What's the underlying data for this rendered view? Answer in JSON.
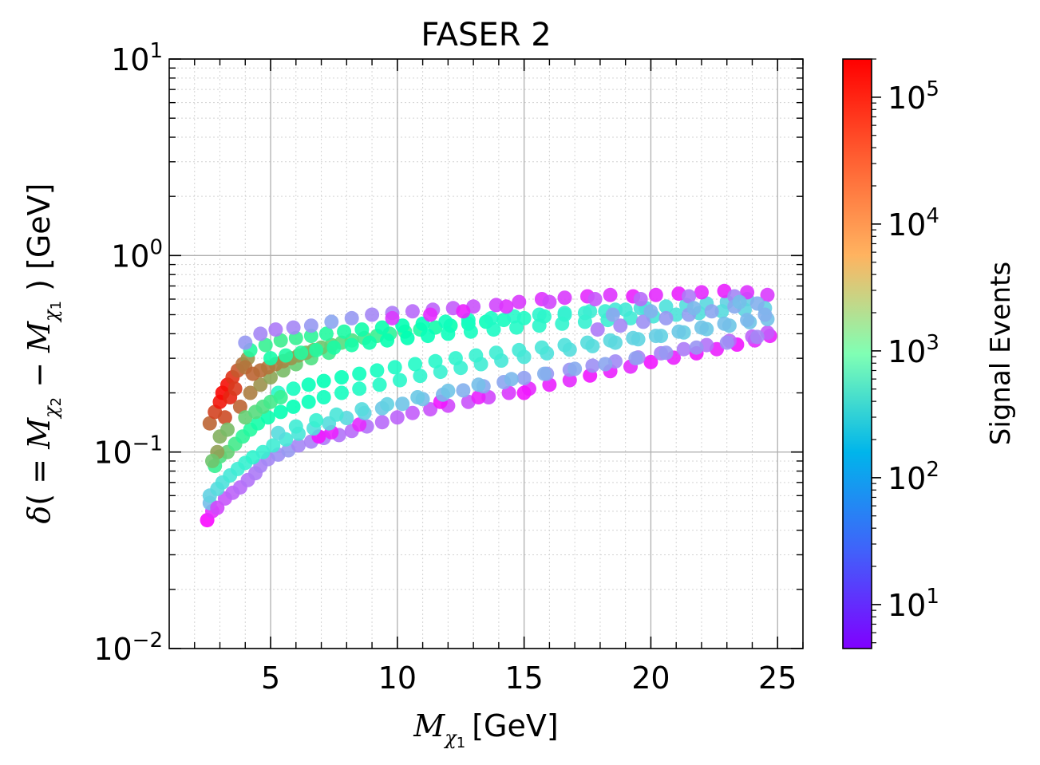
{
  "chart_data": {
    "type": "scatter",
    "title": "FASER 2",
    "xlabel": {
      "symbol": "M",
      "subscript": "χ",
      "subsubscript": "1",
      "unit": "[GeV]"
    },
    "ylabel": {
      "delta": "δ",
      "open": "( = ",
      "m2": "M",
      "sub2": "χ",
      "subsub2": "2",
      "minus": " − ",
      "m1": "M",
      "sub1": "χ",
      "subsub1": "1",
      "close": " ) [GeV]"
    },
    "x_scale": "linear",
    "y_scale": "log",
    "xlim": [
      1,
      26
    ],
    "ylim": [
      0.01,
      10
    ],
    "x_ticks": [
      {
        "value": 5,
        "label": "5"
      },
      {
        "value": 10,
        "label": "10"
      },
      {
        "value": 15,
        "label": "15"
      },
      {
        "value": 20,
        "label": "20"
      },
      {
        "value": 25,
        "label": "25"
      }
    ],
    "y_ticks": [
      {
        "value": 0.01,
        "base": "10",
        "exp": "−2"
      },
      {
        "value": 0.1,
        "base": "10",
        "exp": "−1"
      },
      {
        "value": 1,
        "base": "10",
        "exp": "0"
      },
      {
        "value": 10,
        "base": "10",
        "exp": "1"
      }
    ],
    "grid": true,
    "colorbar": {
      "label": "Signal Events",
      "scale": "log",
      "colormap": "rainbow",
      "range": [
        4.5,
        200000
      ],
      "ticks": [
        {
          "value": 10,
          "base": "10",
          "exp": "1"
        },
        {
          "value": 100,
          "base": "10",
          "exp": "2"
        },
        {
          "value": 1000,
          "base": "10",
          "exp": "3"
        },
        {
          "value": 10000,
          "base": "10",
          "exp": "4"
        },
        {
          "value": 100000,
          "base": "10",
          "exp": "5"
        }
      ]
    },
    "points_columns": [
      "x_GeV",
      "delta_GeV",
      "signal_events"
    ],
    "points": [
      [
        2.5,
        0.045,
        5
      ],
      [
        2.7,
        0.05,
        8
      ],
      [
        2.6,
        0.055,
        80
      ],
      [
        2.9,
        0.052,
        12
      ],
      [
        3.2,
        0.058,
        15
      ],
      [
        3.5,
        0.062,
        18
      ],
      [
        3.8,
        0.066,
        20
      ],
      [
        4.1,
        0.072,
        22
      ],
      [
        4.4,
        0.078,
        25
      ],
      [
        4.6,
        0.085,
        28
      ],
      [
        4.9,
        0.092,
        30
      ],
      [
        5.3,
        0.097,
        35
      ],
      [
        5.7,
        0.102,
        40
      ],
      [
        6.1,
        0.108,
        30
      ],
      [
        6.6,
        0.113,
        28
      ],
      [
        7.1,
        0.118,
        25
      ],
      [
        7.7,
        0.122,
        22
      ],
      [
        8.2,
        0.128,
        20
      ],
      [
        8.8,
        0.135,
        22
      ],
      [
        9.4,
        0.142,
        20
      ],
      [
        10.0,
        0.15,
        18
      ],
      [
        10.6,
        0.158,
        16
      ],
      [
        11.3,
        0.165,
        14
      ],
      [
        12.0,
        0.172,
        12
      ],
      [
        12.8,
        0.18,
        14
      ],
      [
        13.6,
        0.19,
        12
      ],
      [
        14.4,
        0.2,
        10
      ],
      [
        15.2,
        0.21,
        8
      ],
      [
        16.0,
        0.22,
        7
      ],
      [
        16.8,
        0.232,
        8
      ],
      [
        17.6,
        0.245,
        6
      ],
      [
        18.4,
        0.258,
        7
      ],
      [
        19.2,
        0.272,
        8
      ],
      [
        20.0,
        0.287,
        6
      ],
      [
        20.9,
        0.302,
        7
      ],
      [
        21.8,
        0.318,
        6
      ],
      [
        22.6,
        0.334,
        7
      ],
      [
        23.4,
        0.352,
        6
      ],
      [
        24.1,
        0.37,
        8
      ],
      [
        24.7,
        0.39,
        7
      ],
      [
        6.9,
        0.12,
        6
      ],
      [
        7.4,
        0.126,
        7
      ],
      [
        8.5,
        0.138,
        8
      ],
      [
        11.7,
        0.18,
        6
      ],
      [
        13.2,
        0.19,
        7
      ],
      [
        15.0,
        0.2,
        6
      ],
      [
        2.6,
        0.06,
        120
      ],
      [
        2.9,
        0.065,
        150
      ],
      [
        3.1,
        0.07,
        180
      ],
      [
        3.4,
        0.076,
        220
      ],
      [
        3.7,
        0.082,
        250
      ],
      [
        4.0,
        0.088,
        300
      ],
      [
        4.3,
        0.094,
        350
      ],
      [
        4.7,
        0.1,
        300
      ],
      [
        5.1,
        0.108,
        250
      ],
      [
        5.6,
        0.116,
        220
      ],
      [
        6.1,
        0.124,
        200
      ],
      [
        6.7,
        0.132,
        180
      ],
      [
        7.3,
        0.14,
        160
      ],
      [
        8.0,
        0.149,
        140
      ],
      [
        8.7,
        0.158,
        120
      ],
      [
        9.4,
        0.167,
        100
      ],
      [
        10.2,
        0.176,
        90
      ],
      [
        11.0,
        0.186,
        80
      ],
      [
        11.8,
        0.196,
        70
      ],
      [
        12.6,
        0.206,
        60
      ],
      [
        13.4,
        0.216,
        55
      ],
      [
        14.2,
        0.227,
        50
      ],
      [
        15.0,
        0.238,
        45
      ],
      [
        15.9,
        0.25,
        40
      ],
      [
        16.8,
        0.262,
        38
      ],
      [
        17.7,
        0.275,
        35
      ],
      [
        18.6,
        0.289,
        32
      ],
      [
        19.5,
        0.303,
        30
      ],
      [
        20.4,
        0.318,
        28
      ],
      [
        21.3,
        0.334,
        25
      ],
      [
        22.2,
        0.35,
        22
      ],
      [
        23.1,
        0.368,
        20
      ],
      [
        24.0,
        0.387,
        18
      ],
      [
        24.6,
        0.405,
        16
      ],
      [
        5.3,
        0.125,
        150
      ],
      [
        6.0,
        0.135,
        250
      ],
      [
        6.8,
        0.145,
        300
      ],
      [
        7.6,
        0.155,
        200
      ],
      [
        8.6,
        0.165,
        150
      ],
      [
        9.6,
        0.175,
        120
      ],
      [
        10.8,
        0.19,
        100
      ],
      [
        12.0,
        0.205,
        90
      ],
      [
        13.2,
        0.22,
        80
      ],
      [
        14.5,
        0.235,
        70
      ],
      [
        15.8,
        0.25,
        60
      ],
      [
        17.0,
        0.265,
        55
      ],
      [
        18.2,
        0.28,
        50
      ],
      [
        19.4,
        0.3,
        45
      ],
      [
        20.6,
        0.32,
        40
      ],
      [
        21.8,
        0.34,
        38
      ],
      [
        23.0,
        0.36,
        35
      ],
      [
        24.2,
        0.385,
        30
      ],
      [
        2.8,
        0.085,
        3000
      ],
      [
        3.0,
        0.095,
        5000
      ],
      [
        3.3,
        0.1,
        8000
      ],
      [
        3.6,
        0.11,
        4000
      ],
      [
        3.9,
        0.12,
        2500
      ],
      [
        4.2,
        0.13,
        2000
      ],
      [
        4.5,
        0.14,
        1500
      ],
      [
        4.9,
        0.15,
        1200
      ],
      [
        5.4,
        0.16,
        1000
      ],
      [
        5.9,
        0.17,
        900
      ],
      [
        6.5,
        0.18,
        800
      ],
      [
        7.1,
        0.19,
        700
      ],
      [
        7.8,
        0.2,
        600
      ],
      [
        8.5,
        0.21,
        500
      ],
      [
        9.3,
        0.22,
        450
      ],
      [
        10.1,
        0.232,
        400
      ],
      [
        10.9,
        0.244,
        350
      ],
      [
        11.7,
        0.256,
        300
      ],
      [
        12.5,
        0.268,
        280
      ],
      [
        13.3,
        0.28,
        250
      ],
      [
        14.1,
        0.292,
        220
      ],
      [
        15.0,
        0.305,
        200
      ],
      [
        15.9,
        0.318,
        180
      ],
      [
        16.8,
        0.332,
        160
      ],
      [
        17.7,
        0.346,
        150
      ],
      [
        18.6,
        0.36,
        140
      ],
      [
        19.5,
        0.375,
        130
      ],
      [
        20.4,
        0.39,
        120
      ],
      [
        21.3,
        0.406,
        110
      ],
      [
        22.2,
        0.422,
        100
      ],
      [
        23.1,
        0.44,
        95
      ],
      [
        23.9,
        0.458,
        90
      ],
      [
        24.6,
        0.475,
        85
      ],
      [
        2.6,
        0.14,
        50000
      ],
      [
        2.8,
        0.16,
        80000
      ],
      [
        3.0,
        0.18,
        150000
      ],
      [
        3.1,
        0.2,
        180000
      ],
      [
        3.3,
        0.22,
        160000
      ],
      [
        3.5,
        0.24,
        100000
      ],
      [
        3.7,
        0.26,
        60000
      ],
      [
        3.9,
        0.28,
        40000
      ],
      [
        4.1,
        0.3,
        25000
      ],
      [
        3.4,
        0.19,
        120000
      ],
      [
        3.6,
        0.21,
        90000
      ],
      [
        3.2,
        0.15,
        70000
      ],
      [
        3.8,
        0.17,
        50000
      ],
      [
        4.2,
        0.2,
        35000
      ],
      [
        4.6,
        0.22,
        25000
      ],
      [
        5.0,
        0.24,
        18000
      ],
      [
        5.5,
        0.26,
        12000
      ],
      [
        6.0,
        0.28,
        8000
      ],
      [
        6.6,
        0.3,
        5000
      ],
      [
        7.3,
        0.32,
        3500
      ],
      [
        4.0,
        0.27,
        40000
      ],
      [
        4.3,
        0.25,
        50000
      ],
      [
        4.6,
        0.26,
        45000
      ],
      [
        4.9,
        0.27,
        40000
      ],
      [
        5.2,
        0.28,
        35000
      ],
      [
        5.5,
        0.29,
        30000
      ],
      [
        5.8,
        0.3,
        25000
      ],
      [
        6.1,
        0.31,
        20000
      ],
      [
        6.4,
        0.32,
        16000
      ],
      [
        6.7,
        0.33,
        13000
      ],
      [
        7.0,
        0.34,
        10000
      ],
      [
        7.4,
        0.35,
        8000
      ],
      [
        7.8,
        0.36,
        6000
      ],
      [
        8.2,
        0.37,
        5000
      ],
      [
        8.7,
        0.38,
        4000
      ],
      [
        9.2,
        0.39,
        3200
      ],
      [
        9.7,
        0.4,
        2600
      ],
      [
        10.3,
        0.41,
        2100
      ],
      [
        10.9,
        0.42,
        1700
      ],
      [
        11.5,
        0.43,
        1400
      ],
      [
        12.1,
        0.44,
        1100
      ],
      [
        12.8,
        0.45,
        900
      ],
      [
        13.5,
        0.46,
        750
      ],
      [
        14.2,
        0.47,
        600
      ],
      [
        15.0,
        0.48,
        500
      ],
      [
        15.8,
        0.49,
        420
      ],
      [
        16.6,
        0.5,
        350
      ],
      [
        17.4,
        0.51,
        300
      ],
      [
        18.2,
        0.52,
        260
      ],
      [
        19.0,
        0.53,
        230
      ],
      [
        19.8,
        0.54,
        200
      ],
      [
        20.6,
        0.55,
        180
      ],
      [
        21.4,
        0.56,
        160
      ],
      [
        22.2,
        0.57,
        140
      ],
      [
        23.0,
        0.58,
        120
      ],
      [
        23.8,
        0.6,
        110
      ],
      [
        4.2,
        0.33,
        2000
      ],
      [
        4.8,
        0.35,
        3000
      ],
      [
        5.4,
        0.37,
        3500
      ],
      [
        6.0,
        0.38,
        3000
      ],
      [
        6.6,
        0.39,
        2500
      ],
      [
        7.2,
        0.4,
        2000
      ],
      [
        7.9,
        0.41,
        1700
      ],
      [
        8.6,
        0.42,
        1400
      ],
      [
        9.4,
        0.43,
        1200
      ],
      [
        10.2,
        0.44,
        1000
      ],
      [
        11.0,
        0.45,
        850
      ],
      [
        11.9,
        0.46,
        700
      ],
      [
        12.8,
        0.47,
        600
      ],
      [
        13.7,
        0.48,
        500
      ],
      [
        14.6,
        0.49,
        420
      ],
      [
        15.6,
        0.5,
        360
      ],
      [
        16.6,
        0.51,
        300
      ],
      [
        17.6,
        0.52,
        260
      ],
      [
        18.6,
        0.53,
        220
      ],
      [
        19.6,
        0.54,
        190
      ],
      [
        4.0,
        0.36,
        40
      ],
      [
        4.6,
        0.4,
        30
      ],
      [
        5.2,
        0.42,
        25
      ],
      [
        5.9,
        0.43,
        30
      ],
      [
        6.6,
        0.44,
        40
      ],
      [
        7.4,
        0.46,
        50
      ],
      [
        8.2,
        0.48,
        40
      ],
      [
        9.0,
        0.5,
        30
      ],
      [
        9.8,
        0.51,
        25
      ],
      [
        10.6,
        0.52,
        20
      ],
      [
        11.4,
        0.53,
        18
      ],
      [
        12.2,
        0.54,
        16
      ],
      [
        13.0,
        0.55,
        14
      ],
      [
        13.9,
        0.56,
        12
      ],
      [
        14.8,
        0.58,
        10
      ],
      [
        15.7,
        0.6,
        9
      ],
      [
        16.6,
        0.61,
        10
      ],
      [
        17.5,
        0.62,
        8
      ],
      [
        18.4,
        0.63,
        9
      ],
      [
        19.3,
        0.62,
        7
      ],
      [
        20.2,
        0.63,
        8
      ],
      [
        21.1,
        0.64,
        7
      ],
      [
        22.0,
        0.65,
        8
      ],
      [
        22.9,
        0.66,
        7
      ],
      [
        23.8,
        0.65,
        9
      ],
      [
        24.6,
        0.63,
        10
      ],
      [
        9.8,
        0.48,
        10
      ],
      [
        11.3,
        0.5,
        8
      ],
      [
        12.6,
        0.52,
        7
      ],
      [
        14.3,
        0.55,
        9
      ],
      [
        16.0,
        0.58,
        12
      ],
      [
        17.8,
        0.6,
        15
      ],
      [
        19.6,
        0.6,
        20
      ],
      [
        21.5,
        0.62,
        25
      ],
      [
        23.3,
        0.62,
        30
      ],
      [
        5.0,
        0.3,
        1500
      ],
      [
        5.6,
        0.31,
        1800
      ],
      [
        6.2,
        0.32,
        2200
      ],
      [
        6.8,
        0.33,
        2000
      ],
      [
        7.5,
        0.34,
        1700
      ],
      [
        8.2,
        0.35,
        1500
      ],
      [
        8.9,
        0.36,
        1300
      ],
      [
        9.6,
        0.37,
        1100
      ],
      [
        10.4,
        0.38,
        950
      ],
      [
        11.2,
        0.39,
        800
      ],
      [
        12.0,
        0.4,
        700
      ],
      [
        12.9,
        0.41,
        600
      ],
      [
        13.8,
        0.42,
        520
      ],
      [
        14.7,
        0.43,
        450
      ],
      [
        15.6,
        0.44,
        390
      ],
      [
        16.5,
        0.45,
        340
      ],
      [
        17.4,
        0.46,
        300
      ],
      [
        18.3,
        0.47,
        270
      ],
      [
        19.2,
        0.48,
        240
      ],
      [
        20.1,
        0.49,
        210
      ],
      [
        21.0,
        0.5,
        190
      ],
      [
        21.9,
        0.51,
        170
      ],
      [
        22.8,
        0.52,
        150
      ],
      [
        23.7,
        0.53,
        130
      ],
      [
        24.5,
        0.54,
        115
      ],
      [
        5.3,
        0.2,
        400
      ],
      [
        5.9,
        0.21,
        600
      ],
      [
        6.5,
        0.22,
        800
      ],
      [
        7.1,
        0.23,
        900
      ],
      [
        7.8,
        0.24,
        800
      ],
      [
        8.5,
        0.25,
        700
      ],
      [
        9.2,
        0.26,
        600
      ],
      [
        9.9,
        0.27,
        520
      ],
      [
        10.7,
        0.28,
        450
      ],
      [
        11.5,
        0.29,
        400
      ],
      [
        12.3,
        0.3,
        350
      ],
      [
        13.1,
        0.31,
        300
      ],
      [
        13.9,
        0.32,
        260
      ],
      [
        14.8,
        0.33,
        230
      ],
      [
        15.7,
        0.34,
        200
      ],
      [
        16.6,
        0.35,
        180
      ],
      [
        17.5,
        0.36,
        160
      ],
      [
        18.4,
        0.37,
        140
      ],
      [
        19.3,
        0.38,
        125
      ],
      [
        20.2,
        0.39,
        110
      ],
      [
        21.1,
        0.41,
        100
      ],
      [
        22.0,
        0.43,
        90
      ],
      [
        22.9,
        0.45,
        80
      ],
      [
        23.8,
        0.47,
        70
      ],
      [
        24.5,
        0.5,
        60
      ],
      [
        17.9,
        0.42,
        25
      ],
      [
        18.8,
        0.44,
        30
      ],
      [
        19.7,
        0.46,
        35
      ],
      [
        20.6,
        0.48,
        40
      ],
      [
        21.5,
        0.5,
        45
      ],
      [
        22.4,
        0.52,
        50
      ],
      [
        23.3,
        0.55,
        55
      ],
      [
        24.2,
        0.57,
        60
      ],
      [
        18.5,
        0.5,
        50
      ],
      [
        20.0,
        0.52,
        60
      ],
      [
        21.7,
        0.54,
        70
      ],
      [
        23.5,
        0.58,
        80
      ],
      [
        3.0,
        0.12,
        15000
      ],
      [
        3.3,
        0.13,
        12000
      ],
      [
        4.0,
        0.15,
        8000
      ],
      [
        4.4,
        0.16,
        6000
      ],
      [
        4.7,
        0.17,
        5000
      ],
      [
        5.0,
        0.18,
        4000
      ],
      [
        5.4,
        0.19,
        3000
      ],
      [
        2.9,
        0.1,
        20000
      ],
      [
        2.7,
        0.09,
        10000
      ]
    ]
  }
}
